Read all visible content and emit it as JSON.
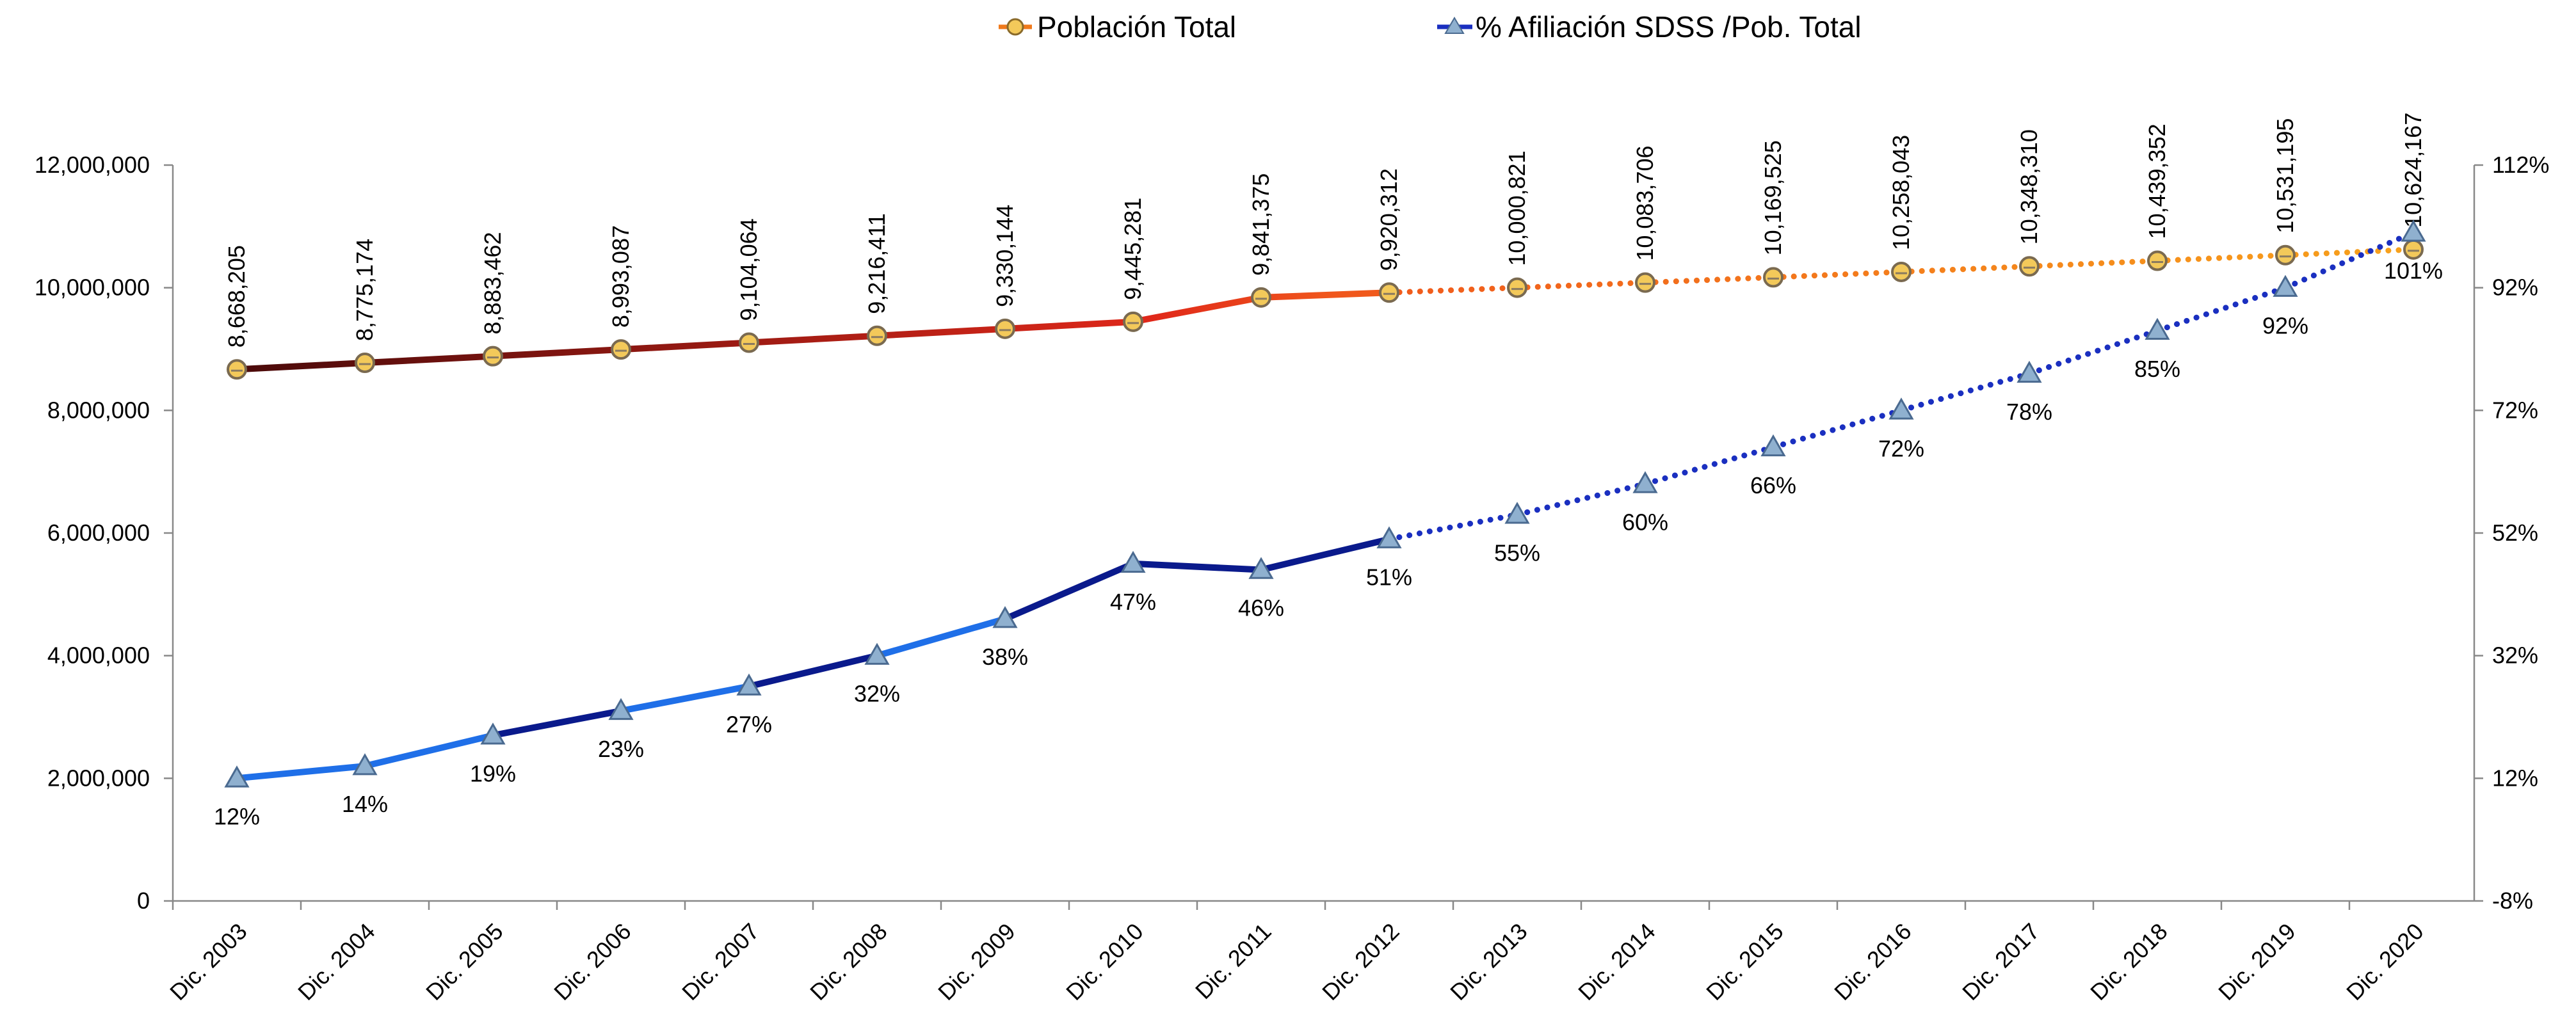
{
  "chart_data": {
    "type": "line",
    "categories": [
      "Dic. 2003",
      "Dic. 2004",
      "Dic. 2005",
      "Dic. 2006",
      "Dic. 2007",
      "Dic. 2008",
      "Dic. 2009",
      "Dic. 2010",
      "Dic. 2011",
      "Dic. 2012",
      "Dic. 2013",
      "Dic. 2014",
      "Dic. 2015",
      "Dic. 2016",
      "Dic. 2017",
      "Dic. 2018",
      "Dic. 2019",
      "Dic. 2020"
    ],
    "series": [
      {
        "name": "Población Total",
        "axis": "left",
        "values": [
          8668205,
          8775174,
          8883462,
          8993087,
          9104064,
          9216411,
          9330144,
          9445281,
          9841375,
          9920312,
          10000821,
          10083706,
          10169525,
          10258043,
          10348310,
          10439352,
          10531195,
          10624167
        ],
        "labels": [
          "8,668,205",
          "8,775,174",
          "8,883,462",
          "8,993,087",
          "9,104,064",
          "9,216,411",
          "9,330,144",
          "9,445,281",
          "9,841,375",
          "9,920,312",
          "10,000,821",
          "10,083,706",
          "10,169,525",
          "10,258,043",
          "10,348,310",
          "10,439,352",
          "10,531,195",
          "10,624,167"
        ],
        "solid_until_index": 9,
        "colors": {
          "start": "#4a0a0a",
          "mid": "#e0281a",
          "end": "#f7a21c"
        },
        "marker": "circle"
      },
      {
        "name": "% Afiliación SDSS /Pob. Total",
        "axis": "right",
        "values": [
          12,
          14,
          19,
          23,
          27,
          32,
          38,
          47,
          46,
          51,
          55,
          60,
          66,
          72,
          78,
          85,
          92,
          101
        ],
        "labels": [
          "12%",
          "14%",
          "19%",
          "23%",
          "27%",
          "32%",
          "38%",
          "47%",
          "46%",
          "51%",
          "55%",
          "60%",
          "66%",
          "72%",
          "78%",
          "85%",
          "92%",
          "101%"
        ],
        "solid_until_index": 9,
        "colors": {
          "bright": "#1f6fe8",
          "dark": "#0a1a8c",
          "dotted": "#1a2fc0"
        },
        "marker": "triangle"
      }
    ],
    "y_left": {
      "min": 0,
      "max": 12000000,
      "ticks": [
        "0",
        "2,000,000",
        "4,000,000",
        "6,000,000",
        "8,000,000",
        "10,000,000",
        "12,000,000"
      ]
    },
    "y_right": {
      "min": -8,
      "max": 112,
      "ticks": [
        "-8%",
        "12%",
        "32%",
        "52%",
        "72%",
        "92%",
        "112%"
      ]
    },
    "legend_position": "top-center",
    "grid": false
  }
}
